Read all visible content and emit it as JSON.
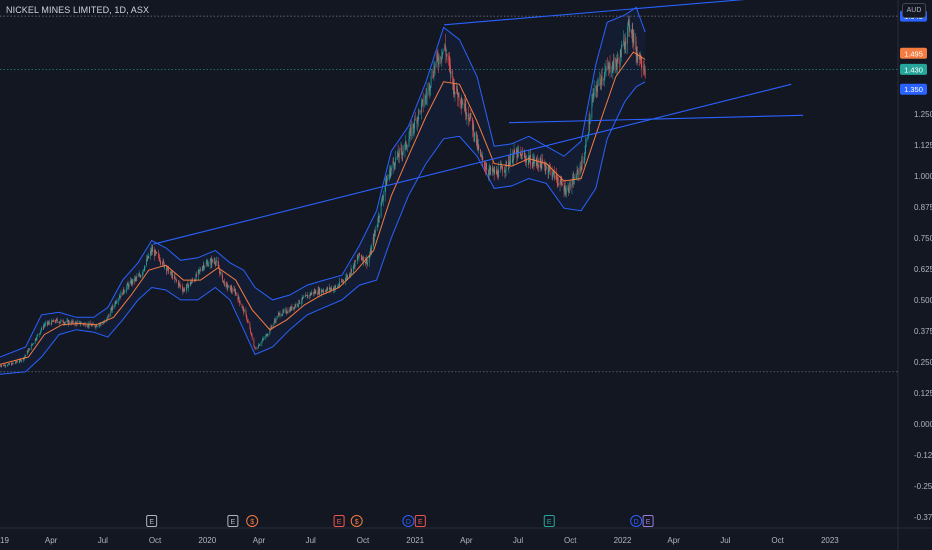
{
  "header": {
    "title": "NICKEL MINES LIMITED, 1D, ASX",
    "currency": "AUD"
  },
  "chart_data": {
    "type": "candlestick",
    "symbol": "NIC",
    "ylim": [
      -0.42,
      1.71
    ],
    "yticks": [
      1.25,
      1.125,
      1.0,
      0.875,
      0.75,
      0.625,
      0.5,
      0.375,
      0.25,
      0.125,
      0.0,
      -0.125,
      -0.25,
      -0.375
    ],
    "ytick_labels": [
      "1.250",
      "1.125",
      "1.000",
      "0.875",
      "0.750",
      "0.625",
      "0.500",
      "0.375",
      "0.250",
      "0.125",
      "0.000",
      "-0.125",
      "-0.250",
      "-0.375"
    ],
    "xlim": [
      "2019-01-01",
      "2023-05-01"
    ],
    "xticks": [
      {
        "date": "2019-01-01",
        "label": "2019"
      },
      {
        "date": "2019-04-01",
        "label": "Apr"
      },
      {
        "date": "2019-07-01",
        "label": "Jul"
      },
      {
        "date": "2019-10-01",
        "label": "Oct"
      },
      {
        "date": "2020-01-01",
        "label": "2020"
      },
      {
        "date": "2020-04-01",
        "label": "Apr"
      },
      {
        "date": "2020-07-01",
        "label": "Jul"
      },
      {
        "date": "2020-10-01",
        "label": "Oct"
      },
      {
        "date": "2021-01-01",
        "label": "2021"
      },
      {
        "date": "2021-04-01",
        "label": "Apr"
      },
      {
        "date": "2021-07-01",
        "label": "Jul"
      },
      {
        "date": "2021-10-01",
        "label": "Oct"
      },
      {
        "date": "2022-01-01",
        "label": "2022"
      },
      {
        "date": "2022-04-01",
        "label": "Apr"
      },
      {
        "date": "2022-07-01",
        "label": "Jul"
      },
      {
        "date": "2022-10-01",
        "label": "Oct"
      },
      {
        "date": "2023-01-01",
        "label": "2023"
      }
    ],
    "price_labels": [
      {
        "value": 1.645,
        "label": "1.645",
        "color": "#2962ff"
      },
      {
        "value": 1.495,
        "label": "1.495",
        "color": "#f57c40"
      },
      {
        "value": 1.43,
        "label": "1.430",
        "color": "#26a69a"
      },
      {
        "value": 1.35,
        "label": "1.350",
        "color": "#2962ff"
      }
    ],
    "horizontal_levels": [
      {
        "value": 1.645,
        "style": "dotted",
        "color": "#9598a1"
      },
      {
        "value": 1.43,
        "style": "dotted",
        "color": "#26a69a"
      },
      {
        "value": 0.21,
        "style": "dotted",
        "color": "#9598a1"
      }
    ],
    "trendlines": [
      {
        "from": {
          "date": "2019-09-28",
          "value": 0.725
        },
        "to": {
          "date": "2022-10-25",
          "value": 1.37
        }
      },
      {
        "from": {
          "date": "2021-02-21",
          "value": 1.61
        },
        "to": {
          "date": "2022-10-10",
          "value": 1.725
        }
      },
      {
        "from": {
          "date": "2021-06-15",
          "value": 1.215
        },
        "to": {
          "date": "2022-11-15",
          "value": 1.245
        }
      }
    ],
    "price_path": [
      [
        "2019-01-01",
        0.235
      ],
      [
        "2019-01-20",
        0.24
      ],
      [
        "2019-02-10",
        0.26
      ],
      [
        "2019-03-01",
        0.33
      ],
      [
        "2019-03-20",
        0.4
      ],
      [
        "2019-04-10",
        0.415
      ],
      [
        "2019-05-01",
        0.41
      ],
      [
        "2019-05-25",
        0.405
      ],
      [
        "2019-06-15",
        0.395
      ],
      [
        "2019-07-05",
        0.41
      ],
      [
        "2019-07-25",
        0.5
      ],
      [
        "2019-08-15",
        0.56
      ],
      [
        "2019-09-05",
        0.6
      ],
      [
        "2019-09-25",
        0.7
      ],
      [
        "2019-10-10",
        0.665
      ],
      [
        "2019-10-30",
        0.6
      ],
      [
        "2019-11-20",
        0.54
      ],
      [
        "2019-12-10",
        0.585
      ],
      [
        "2019-12-25",
        0.64
      ],
      [
        "2020-01-15",
        0.66
      ],
      [
        "2020-02-01",
        0.56
      ],
      [
        "2020-02-20",
        0.53
      ],
      [
        "2020-03-10",
        0.43
      ],
      [
        "2020-03-25",
        0.3
      ],
      [
        "2020-04-15",
        0.36
      ],
      [
        "2020-05-05",
        0.44
      ],
      [
        "2020-05-25",
        0.46
      ],
      [
        "2020-06-15",
        0.5
      ],
      [
        "2020-07-05",
        0.53
      ],
      [
        "2020-07-25",
        0.54
      ],
      [
        "2020-08-15",
        0.55
      ],
      [
        "2020-09-05",
        0.6
      ],
      [
        "2020-09-25",
        0.68
      ],
      [
        "2020-10-10",
        0.65
      ],
      [
        "2020-10-25",
        0.8
      ],
      [
        "2020-11-10",
        0.97
      ],
      [
        "2020-11-25",
        1.06
      ],
      [
        "2020-12-15",
        1.12
      ],
      [
        "2021-01-01",
        1.22
      ],
      [
        "2021-01-20",
        1.32
      ],
      [
        "2021-02-05",
        1.45
      ],
      [
        "2021-02-22",
        1.52
      ],
      [
        "2021-03-10",
        1.36
      ],
      [
        "2021-03-25",
        1.3
      ],
      [
        "2021-04-10",
        1.22
      ],
      [
        "2021-04-25",
        1.08
      ],
      [
        "2021-05-10",
        1.02
      ],
      [
        "2021-05-25",
        1.01
      ],
      [
        "2021-06-10",
        1.04
      ],
      [
        "2021-06-25",
        1.09
      ],
      [
        "2021-07-10",
        1.08
      ],
      [
        "2021-07-25",
        1.06
      ],
      [
        "2021-08-10",
        1.05
      ],
      [
        "2021-08-25",
        1.03
      ],
      [
        "2021-09-10",
        0.98
      ],
      [
        "2021-09-25",
        0.94
      ],
      [
        "2021-10-10",
        0.99
      ],
      [
        "2021-10-25",
        1.07
      ],
      [
        "2021-11-10",
        1.32
      ],
      [
        "2021-11-25",
        1.4
      ],
      [
        "2021-12-10",
        1.44
      ],
      [
        "2021-12-25",
        1.46
      ],
      [
        "2022-01-05",
        1.55
      ],
      [
        "2022-01-15",
        1.62
      ],
      [
        "2022-01-25",
        1.5
      ],
      [
        "2022-02-01",
        1.48
      ],
      [
        "2022-02-10",
        1.43
      ]
    ],
    "bands": {
      "upper": [
        [
          "2019-01-01",
          0.27
        ],
        [
          "2019-02-15",
          0.31
        ],
        [
          "2019-03-15",
          0.44
        ],
        [
          "2019-04-15",
          0.45
        ],
        [
          "2019-05-15",
          0.43
        ],
        [
          "2019-06-15",
          0.43
        ],
        [
          "2019-07-10",
          0.47
        ],
        [
          "2019-08-05",
          0.58
        ],
        [
          "2019-09-01",
          0.65
        ],
        [
          "2019-09-25",
          0.74
        ],
        [
          "2019-10-20",
          0.71
        ],
        [
          "2019-11-15",
          0.66
        ],
        [
          "2019-12-15",
          0.67
        ],
        [
          "2020-01-15",
          0.7
        ],
        [
          "2020-02-10",
          0.65
        ],
        [
          "2020-03-05",
          0.62
        ],
        [
          "2020-03-25",
          0.55
        ],
        [
          "2020-04-25",
          0.5
        ],
        [
          "2020-05-25",
          0.52
        ],
        [
          "2020-06-25",
          0.56
        ],
        [
          "2020-07-25",
          0.58
        ],
        [
          "2020-08-25",
          0.6
        ],
        [
          "2020-09-25",
          0.72
        ],
        [
          "2020-10-25",
          0.86
        ],
        [
          "2020-11-20",
          1.1
        ],
        [
          "2020-12-20",
          1.2
        ],
        [
          "2021-01-20",
          1.38
        ],
        [
          "2021-02-20",
          1.6
        ],
        [
          "2021-03-20",
          1.55
        ],
        [
          "2021-04-20",
          1.4
        ],
        [
          "2021-05-20",
          1.12
        ],
        [
          "2021-06-20",
          1.13
        ],
        [
          "2021-07-20",
          1.16
        ],
        [
          "2021-08-20",
          1.12
        ],
        [
          "2021-09-20",
          1.08
        ],
        [
          "2021-10-20",
          1.14
        ],
        [
          "2021-11-15",
          1.45
        ],
        [
          "2021-12-05",
          1.62
        ],
        [
          "2022-01-05",
          1.65
        ],
        [
          "2022-01-25",
          1.68
        ],
        [
          "2022-02-10",
          1.58
        ]
      ],
      "lower": [
        [
          "2019-01-01",
          0.2
        ],
        [
          "2019-02-15",
          0.21
        ],
        [
          "2019-03-15",
          0.27
        ],
        [
          "2019-04-15",
          0.36
        ],
        [
          "2019-05-15",
          0.38
        ],
        [
          "2019-06-15",
          0.37
        ],
        [
          "2019-07-10",
          0.35
        ],
        [
          "2019-08-05",
          0.42
        ],
        [
          "2019-09-01",
          0.5
        ],
        [
          "2019-09-25",
          0.55
        ],
        [
          "2019-10-20",
          0.54
        ],
        [
          "2019-11-15",
          0.5
        ],
        [
          "2019-12-15",
          0.5
        ],
        [
          "2020-01-15",
          0.55
        ],
        [
          "2020-02-10",
          0.5
        ],
        [
          "2020-03-05",
          0.38
        ],
        [
          "2020-03-25",
          0.28
        ],
        [
          "2020-04-25",
          0.31
        ],
        [
          "2020-05-25",
          0.38
        ],
        [
          "2020-06-25",
          0.44
        ],
        [
          "2020-07-25",
          0.47
        ],
        [
          "2020-08-25",
          0.5
        ],
        [
          "2020-09-25",
          0.56
        ],
        [
          "2020-10-25",
          0.58
        ],
        [
          "2020-11-20",
          0.75
        ],
        [
          "2020-12-20",
          0.92
        ],
        [
          "2021-01-20",
          1.05
        ],
        [
          "2021-02-20",
          1.15
        ],
        [
          "2021-03-20",
          1.16
        ],
        [
          "2021-04-20",
          1.08
        ],
        [
          "2021-05-20",
          0.95
        ],
        [
          "2021-06-20",
          0.96
        ],
        [
          "2021-07-20",
          0.99
        ],
        [
          "2021-08-20",
          0.97
        ],
        [
          "2021-09-20",
          0.87
        ],
        [
          "2021-10-20",
          0.86
        ],
        [
          "2021-11-15",
          0.95
        ],
        [
          "2021-12-05",
          1.15
        ],
        [
          "2022-01-05",
          1.3
        ],
        [
          "2022-01-25",
          1.36
        ],
        [
          "2022-02-10",
          1.38
        ]
      ]
    },
    "moving_average": [
      [
        "2019-01-01",
        0.24
      ],
      [
        "2019-02-20",
        0.27
      ],
      [
        "2019-03-20",
        0.36
      ],
      [
        "2019-04-20",
        0.4
      ],
      [
        "2019-05-20",
        0.405
      ],
      [
        "2019-06-20",
        0.4
      ],
      [
        "2019-07-20",
        0.43
      ],
      [
        "2019-08-20",
        0.52
      ],
      [
        "2019-09-20",
        0.62
      ],
      [
        "2019-10-20",
        0.64
      ],
      [
        "2019-11-20",
        0.58
      ],
      [
        "2019-12-20",
        0.58
      ],
      [
        "2020-01-20",
        0.63
      ],
      [
        "2020-02-20",
        0.58
      ],
      [
        "2020-03-20",
        0.46
      ],
      [
        "2020-04-20",
        0.38
      ],
      [
        "2020-05-20",
        0.42
      ],
      [
        "2020-06-20",
        0.48
      ],
      [
        "2020-07-20",
        0.52
      ],
      [
        "2020-08-20",
        0.55
      ],
      [
        "2020-09-20",
        0.62
      ],
      [
        "2020-10-20",
        0.7
      ],
      [
        "2020-11-20",
        0.92
      ],
      [
        "2020-12-20",
        1.08
      ],
      [
        "2021-01-20",
        1.24
      ],
      [
        "2021-02-20",
        1.38
      ],
      [
        "2021-03-20",
        1.37
      ],
      [
        "2021-04-20",
        1.22
      ],
      [
        "2021-05-20",
        1.05
      ],
      [
        "2021-06-20",
        1.04
      ],
      [
        "2021-07-20",
        1.07
      ],
      [
        "2021-08-20",
        1.05
      ],
      [
        "2021-09-20",
        0.98
      ],
      [
        "2021-10-20",
        0.99
      ],
      [
        "2021-11-20",
        1.2
      ],
      [
        "2021-12-20",
        1.4
      ],
      [
        "2022-01-20",
        1.5
      ],
      [
        "2022-02-10",
        1.47
      ]
    ]
  },
  "events": [
    {
      "date": "2019-09-25",
      "type": "E",
      "color": "#b2b5be"
    },
    {
      "date": "2020-02-15",
      "type": "E",
      "color": "#b2b5be"
    },
    {
      "date": "2020-03-20",
      "type": "$",
      "color": "#f57c40"
    },
    {
      "date": "2020-08-20",
      "type": "E",
      "color": "#ef5350"
    },
    {
      "date": "2020-09-20",
      "type": "$",
      "color": "#f57c40"
    },
    {
      "date": "2020-12-20",
      "type": "D",
      "color": "#2962ff"
    },
    {
      "date": "2021-01-10",
      "type": "E",
      "color": "#ef5350"
    },
    {
      "date": "2021-08-25",
      "type": "E",
      "color": "#26a69a"
    },
    {
      "date": "2022-01-25",
      "type": "D",
      "color": "#2962ff"
    },
    {
      "date": "2022-02-15",
      "type": "E",
      "color": "#9c7cd8"
    }
  ]
}
